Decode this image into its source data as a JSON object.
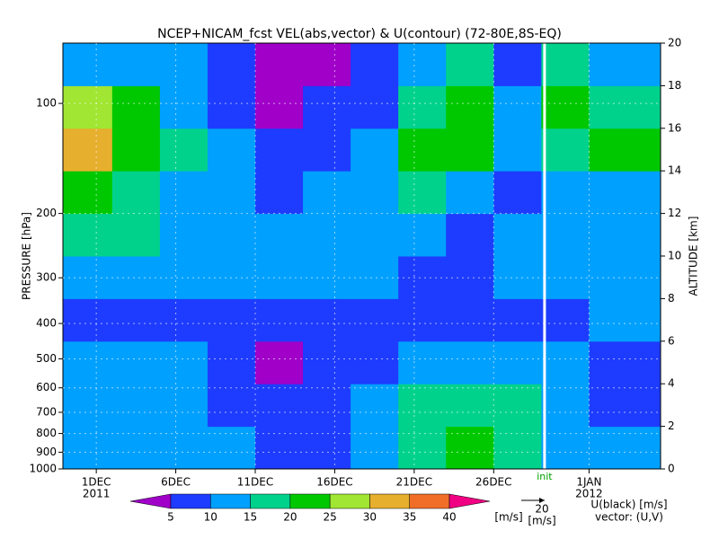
{
  "chart_data": {
    "type": "heatmap",
    "title": "NCEP+NICAM_fcst VEL(abs,vector) & U(contour)  (72-80E,8S-EQ)",
    "ylabel": "PRESSURE [hPa]",
    "y2label": "ALTITUDE [km]",
    "xlim": [
      -2.1,
      35.5
    ],
    "xticks": [
      {
        "value": 0,
        "label": "1DEC"
      },
      {
        "value": 5,
        "label": "6DEC"
      },
      {
        "value": 10,
        "label": "11DEC"
      },
      {
        "value": 15,
        "label": "16DEC"
      },
      {
        "value": 20,
        "label": "21DEC"
      },
      {
        "value": 25,
        "label": "26DEC"
      },
      {
        "value": 31,
        "label": "1JAN"
      }
    ],
    "year_labels": [
      {
        "value": 0,
        "label": "2011"
      },
      {
        "value": 31,
        "label": "2012"
      }
    ],
    "ylog": true,
    "ylim": [
      1000,
      68.4
    ],
    "yticks": [
      100,
      200,
      300,
      400,
      500,
      600,
      700,
      800,
      900,
      1000
    ],
    "y2lim": [
      0,
      20
    ],
    "y2ticks": [
      0,
      2,
      4,
      6,
      8,
      10,
      12,
      14,
      16,
      18,
      20
    ],
    "x_bins": [
      -2.1,
      1,
      4,
      7,
      10,
      13,
      16,
      19,
      22,
      25,
      28,
      31,
      35.5
    ],
    "y2_bins": [
      0,
      2,
      4,
      6,
      8,
      10,
      12,
      14,
      16,
      18,
      20
    ],
    "values": [
      [
        14,
        13,
        12,
        10,
        8,
        9,
        12,
        18,
        20,
        18,
        12,
        10
      ],
      [
        12,
        13,
        12,
        8,
        5,
        6,
        10,
        17,
        18,
        15,
        12,
        8
      ],
      [
        10,
        12,
        10,
        6,
        4,
        5,
        8,
        12,
        12,
        10,
        10,
        8
      ],
      [
        8,
        8,
        8,
        8,
        9,
        6,
        5,
        6,
        8,
        6,
        8,
        10
      ],
      [
        14,
        12,
        10,
        12,
        12,
        10,
        10,
        8,
        8,
        10,
        12,
        12
      ],
      [
        18,
        16,
        12,
        12,
        14,
        12,
        12,
        10,
        8,
        10,
        10,
        10
      ],
      [
        22,
        18,
        14,
        12,
        8,
        10,
        14,
        16,
        12,
        8,
        10,
        14
      ],
      [
        30,
        22,
        15,
        10,
        5,
        8,
        12,
        22,
        24,
        10,
        18,
        20
      ],
      [
        26,
        20,
        14,
        8,
        4,
        6,
        8,
        18,
        20,
        10,
        22,
        18
      ],
      [
        14,
        12,
        10,
        6,
        3,
        4,
        8,
        14,
        16,
        8,
        16,
        14
      ]
    ],
    "colorbar": {
      "levels": [
        5,
        10,
        15,
        20,
        25,
        30,
        35,
        40
      ],
      "colors": [
        "#a000c8",
        "#1e3cff",
        "#00a0ff",
        "#00d28c",
        "#00c800",
        "#a0e632",
        "#e6af2d",
        "#f06e28",
        "#f00082"
      ],
      "label": "[m/s]"
    },
    "init": {
      "x": 28.2,
      "label": "init",
      "color": "#ffffff"
    },
    "vector_key": {
      "value": 20,
      "label": "[m/s]"
    },
    "notes": [
      "U(black) [m/s]",
      "vector: (U,V)"
    ]
  }
}
